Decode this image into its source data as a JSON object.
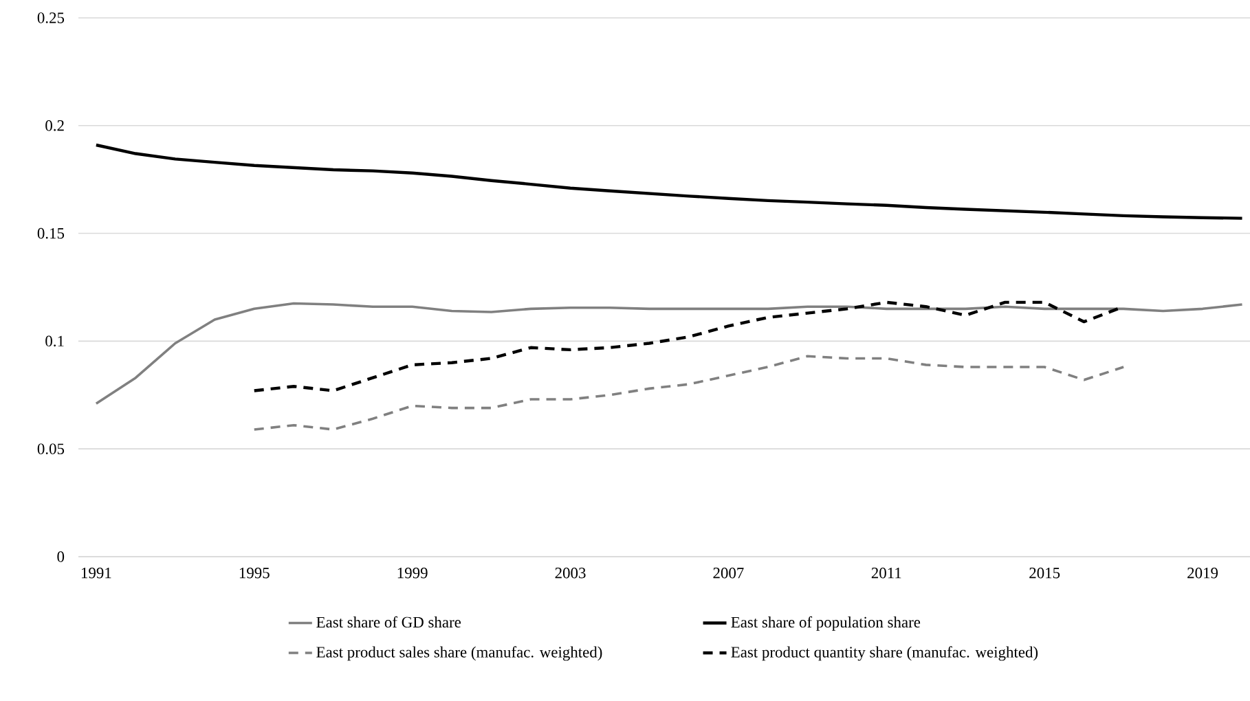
{
  "chart_data": {
    "type": "line",
    "categories": [
      "1991",
      null,
      null,
      null,
      "1995",
      null,
      null,
      null,
      "1999",
      null,
      null,
      null,
      "2003",
      null,
      null,
      null,
      "2007",
      null,
      null,
      null,
      "2011",
      null,
      null,
      null,
      "2015",
      null,
      null,
      null,
      "2019",
      null
    ],
    "series": [
      {
        "name": "East share of GD share",
        "color": "#808080",
        "line_style": "solid",
        "values": [
          0.071,
          0.083,
          0.099,
          0.11,
          0.115,
          0.1175,
          0.117,
          0.116,
          0.116,
          0.114,
          0.1135,
          0.115,
          0.1155,
          0.1155,
          0.115,
          0.115,
          0.115,
          0.115,
          0.116,
          0.116,
          0.115,
          0.115,
          0.115,
          0.116,
          0.115,
          0.115,
          0.115,
          0.114,
          0.115,
          0.117
        ]
      },
      {
        "name": "East share of population share",
        "color": "#000000",
        "line_style": "solid",
        "values": [
          0.191,
          0.187,
          0.1845,
          0.183,
          0.1815,
          0.1805,
          0.1795,
          0.179,
          0.178,
          0.1765,
          0.1745,
          0.1728,
          0.171,
          0.1697,
          0.1685,
          0.1673,
          0.1662,
          0.1652,
          0.1645,
          0.1637,
          0.163,
          0.162,
          0.1612,
          0.1605,
          0.1598,
          0.159,
          0.1582,
          0.1577,
          0.1573,
          0.157
        ]
      },
      {
        "name": "East product sales share (manufac. weighted)",
        "color": "#808080",
        "line_style": "dashed",
        "values": [
          null,
          null,
          null,
          null,
          0.059,
          0.061,
          0.059,
          0.064,
          0.07,
          0.069,
          0.069,
          0.073,
          0.073,
          0.075,
          0.078,
          0.08,
          0.084,
          0.088,
          0.093,
          0.092,
          0.092,
          0.089,
          0.088,
          0.088,
          0.088,
          0.082,
          0.088,
          null,
          null,
          null
        ]
      },
      {
        "name": "East product quantity share (manufac. weighted)",
        "color": "#000000",
        "line_style": "dashed",
        "values": [
          null,
          null,
          null,
          null,
          0.077,
          0.079,
          0.077,
          0.083,
          0.089,
          0.09,
          0.092,
          0.097,
          0.096,
          0.097,
          0.099,
          0.102,
          0.107,
          0.111,
          0.113,
          0.115,
          0.118,
          0.116,
          0.112,
          0.118,
          0.118,
          0.109,
          0.116,
          null,
          null,
          null
        ]
      }
    ],
    "ylim": [
      0,
      0.25
    ],
    "yticks": [
      0,
      0.05,
      0.1,
      0.15,
      0.2,
      0.25
    ],
    "grid": "y",
    "legend": "bottom",
    "marker": "none"
  }
}
